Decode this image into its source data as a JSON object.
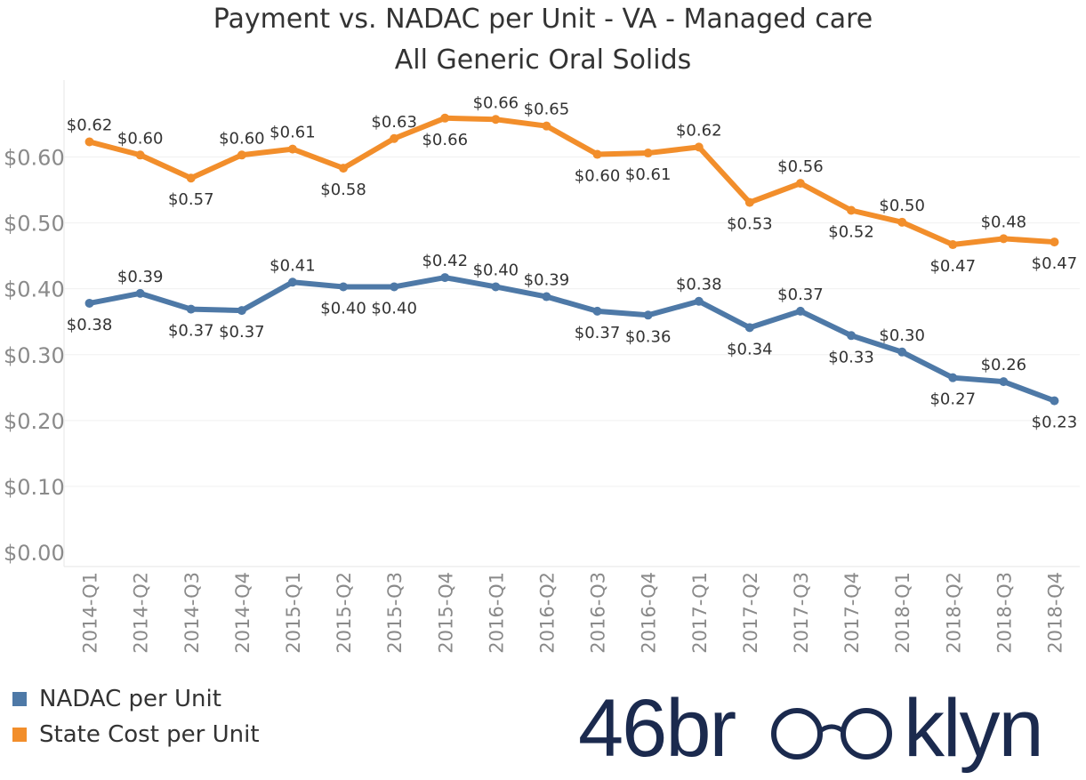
{
  "chart_data": {
    "type": "line",
    "title": "Payment vs. NADAC per Unit - VA - Managed care",
    "subtitle": "All Generic Oral Solids",
    "categories": [
      "2014-Q1",
      "2014-Q2",
      "2014-Q3",
      "2014-Q4",
      "2015-Q1",
      "2015-Q2",
      "2015-Q3",
      "2015-Q4",
      "2016-Q1",
      "2016-Q2",
      "2016-Q3",
      "2016-Q4",
      "2017-Q1",
      "2017-Q2",
      "2017-Q3",
      "2017-Q4",
      "2018-Q1",
      "2018-Q2",
      "2018-Q3",
      "2018-Q4"
    ],
    "series": [
      {
        "name": "NADAC per Unit",
        "color": "#4e79a7",
        "values": [
          0.378,
          0.393,
          0.369,
          0.367,
          0.41,
          0.403,
          0.403,
          0.417,
          0.403,
          0.388,
          0.366,
          0.36,
          0.381,
          0.341,
          0.366,
          0.329,
          0.304,
          0.265,
          0.259,
          0.23
        ],
        "labels": [
          "$0.38",
          "$0.39",
          "$0.37",
          "$0.37",
          "$0.41",
          "$0.40",
          "$0.40",
          "$0.42",
          "$0.40",
          "$0.39",
          "$0.37",
          "$0.36",
          "$0.38",
          "$0.34",
          "$0.37",
          "$0.33",
          "$0.30",
          "$0.27",
          "$0.26",
          "$0.23"
        ],
        "label_pos": [
          "below",
          "above",
          "below",
          "below",
          "above",
          "below",
          "below",
          "above",
          "above",
          "above",
          "below",
          "below",
          "above",
          "below",
          "above",
          "below",
          "above",
          "below",
          "above",
          "below"
        ]
      },
      {
        "name": "State Cost per Unit",
        "color": "#f28e2b",
        "values": [
          0.623,
          0.603,
          0.568,
          0.603,
          0.612,
          0.583,
          0.628,
          0.659,
          0.657,
          0.647,
          0.604,
          0.606,
          0.615,
          0.531,
          0.56,
          0.519,
          0.501,
          0.467,
          0.476,
          0.471
        ],
        "labels": [
          "$0.62",
          "$0.60",
          "$0.57",
          "$0.60",
          "$0.61",
          "$0.58",
          "$0.63",
          "$0.66",
          "$0.66",
          "$0.65",
          "$0.60",
          "$0.61",
          "$0.62",
          "$0.53",
          "$0.56",
          "$0.52",
          "$0.50",
          "$0.47",
          "$0.48",
          "$0.47"
        ],
        "label_pos": [
          "above",
          "above",
          "below",
          "above",
          "above",
          "below",
          "above",
          "below",
          "above",
          "above",
          "below",
          "below",
          "above",
          "below",
          "above",
          "below",
          "above",
          "below",
          "above",
          "below"
        ]
      }
    ],
    "y_ticks": [
      "$0.00",
      "$0.10",
      "$0.20",
      "$0.30",
      "$0.40",
      "$0.50",
      "$0.60"
    ],
    "y_tick_values": [
      0.0,
      0.1,
      0.2,
      0.3,
      0.4,
      0.5,
      0.6
    ],
    "ylim": [
      0,
      0.68
    ],
    "grid": true,
    "legend_position": "bottom-left"
  },
  "logo": {
    "text": "46brooklyn",
    "prefix": "46br",
    "suffix": "klyn",
    "color": "#1b2a4e"
  }
}
